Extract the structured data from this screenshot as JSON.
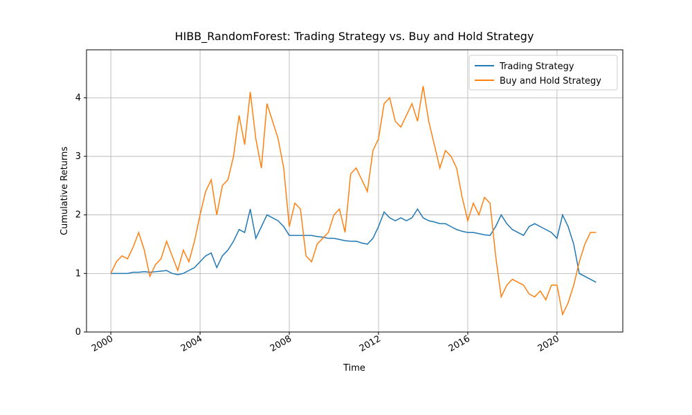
{
  "chart_data": {
    "type": "line",
    "title": "HIBB_RandomForest: Trading Strategy vs. Buy and Hold Strategy",
    "x_label": "Time",
    "y_label": "Cumulative Returns",
    "x": [
      2000,
      2000.25,
      2000.5,
      2000.75,
      2001,
      2001.25,
      2001.5,
      2001.75,
      2002,
      2002.25,
      2002.5,
      2002.75,
      2003,
      2003.25,
      2003.5,
      2003.75,
      2004,
      2004.25,
      2004.5,
      2004.75,
      2005,
      2005.25,
      2005.5,
      2005.75,
      2006,
      2006.25,
      2006.5,
      2006.75,
      2007,
      2007.25,
      2007.5,
      2007.75,
      2008,
      2008.25,
      2008.5,
      2008.75,
      2009,
      2009.25,
      2009.5,
      2009.75,
      2010,
      2010.25,
      2010.5,
      2010.75,
      2011,
      2011.25,
      2011.5,
      2011.75,
      2012,
      2012.25,
      2012.5,
      2012.75,
      2013,
      2013.25,
      2013.5,
      2013.75,
      2014,
      2014.25,
      2014.5,
      2014.75,
      2015,
      2015.25,
      2015.5,
      2015.75,
      2016,
      2016.25,
      2016.5,
      2016.75,
      2017,
      2017.25,
      2017.5,
      2017.75,
      2018,
      2018.25,
      2018.5,
      2018.75,
      2019,
      2019.25,
      2019.5,
      2019.75,
      2020,
      2020.25,
      2020.5,
      2020.75,
      2021,
      2021.25,
      2021.5,
      2021.75
    ],
    "series": [
      {
        "name": "Trading Strategy",
        "color": "#1f77b4",
        "values": [
          1.0,
          1.0,
          1.0,
          1.0,
          1.02,
          1.02,
          1.03,
          1.02,
          1.03,
          1.04,
          1.05,
          1.0,
          0.98,
          1.0,
          1.05,
          1.1,
          1.2,
          1.3,
          1.35,
          1.1,
          1.3,
          1.4,
          1.55,
          1.75,
          1.7,
          2.1,
          1.6,
          1.8,
          2.0,
          1.95,
          1.9,
          1.8,
          1.65,
          1.65,
          1.65,
          1.65,
          1.65,
          1.63,
          1.62,
          1.6,
          1.6,
          1.58,
          1.56,
          1.55,
          1.55,
          1.52,
          1.5,
          1.6,
          1.8,
          2.05,
          1.95,
          1.9,
          1.95,
          1.9,
          1.95,
          2.1,
          1.95,
          1.9,
          1.88,
          1.85,
          1.85,
          1.8,
          1.75,
          1.72,
          1.7,
          1.7,
          1.68,
          1.66,
          1.65,
          1.8,
          2.0,
          1.85,
          1.75,
          1.7,
          1.65,
          1.8,
          1.85,
          1.8,
          1.75,
          1.7,
          1.6,
          2.0,
          1.8,
          1.5,
          1.0,
          0.95,
          0.9,
          0.85
        ]
      },
      {
        "name": "Buy and Hold Strategy",
        "color": "#ff7f0e",
        "values": [
          1.0,
          1.2,
          1.3,
          1.25,
          1.45,
          1.7,
          1.4,
          0.95,
          1.15,
          1.25,
          1.55,
          1.3,
          1.05,
          1.4,
          1.2,
          1.55,
          2.0,
          2.4,
          2.6,
          2.0,
          2.5,
          2.6,
          3.0,
          3.7,
          3.2,
          4.1,
          3.3,
          2.8,
          3.9,
          3.6,
          3.3,
          2.8,
          1.8,
          2.2,
          2.1,
          1.3,
          1.2,
          1.5,
          1.6,
          1.7,
          2.0,
          2.1,
          1.7,
          2.7,
          2.8,
          2.6,
          2.4,
          3.1,
          3.3,
          3.9,
          4.0,
          3.6,
          3.5,
          3.7,
          3.9,
          3.6,
          4.2,
          3.6,
          3.2,
          2.8,
          3.1,
          3.0,
          2.8,
          2.3,
          1.9,
          2.2,
          2.0,
          2.3,
          2.2,
          1.3,
          0.6,
          0.8,
          0.9,
          0.85,
          0.8,
          0.65,
          0.6,
          0.7,
          0.55,
          0.8,
          0.8,
          0.3,
          0.5,
          0.8,
          1.2,
          1.5,
          1.7,
          1.7
        ]
      }
    ],
    "xlim": [
      1998.91,
      2022.95
    ],
    "ylim": [
      0,
      4.82
    ],
    "xticks": [
      2000,
      2004,
      2008,
      2012,
      2016,
      2020
    ],
    "yticks": [
      0,
      1,
      2,
      3,
      4
    ],
    "grid": true,
    "legend": "upper-right"
  }
}
